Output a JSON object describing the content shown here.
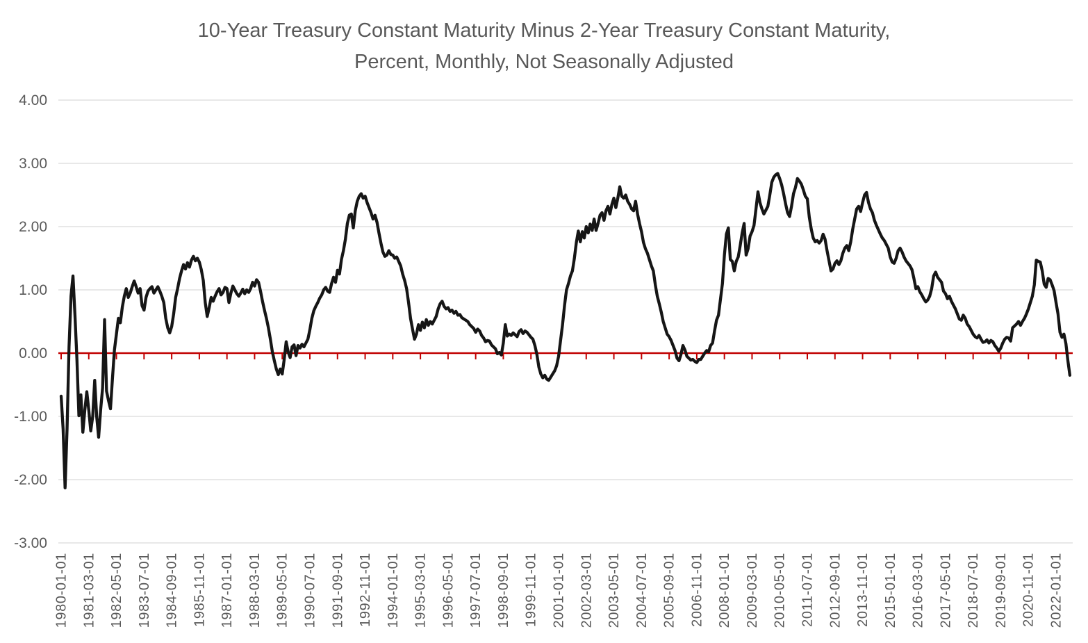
{
  "title": {
    "line1": "10-Year Treasury Constant Maturity Minus 2-Year Treasury Constant Maturity,",
    "line2": "Percent, Monthly, Not Seasonally Adjusted"
  },
  "chart_data": {
    "type": "line",
    "title": "10-Year Treasury Constant Maturity Minus 2-Year Treasury Constant Maturity, Percent, Monthly, Not Seasonally Adjusted",
    "frequency": "monthly",
    "x_start": "1980-01-01",
    "x_end": "2022-08-01",
    "x_tick_interval_months": 14,
    "x_tick_labels": [
      "1980-01-01",
      "1981-03-01",
      "1982-05-01",
      "1983-07-01",
      "1984-09-01",
      "1985-11-01",
      "1987-01-01",
      "1988-03-01",
      "1989-05-01",
      "1990-07-01",
      "1991-09-01",
      "1992-11-01",
      "1994-01-01",
      "1995-03-01",
      "1996-05-01",
      "1997-07-01",
      "1998-09-01",
      "1999-11-01",
      "2001-01-01",
      "2002-03-01",
      "2003-05-01",
      "2004-07-01",
      "2005-09-01",
      "2006-11-01",
      "2008-01-01",
      "2009-03-01",
      "2010-05-01",
      "2011-07-01",
      "2012-09-01",
      "2013-11-01",
      "2015-01-01",
      "2016-03-01",
      "2017-05-01",
      "2018-07-01",
      "2019-09-01",
      "2020-11-01",
      "2022-01-01"
    ],
    "y_tick_labels": [
      "4.00",
      "3.00",
      "2.00",
      "1.00",
      "0.00",
      "-1.00",
      "-2.00",
      "-3.00"
    ],
    "ylim": [
      -3.0,
      4.0
    ],
    "grid": "horizontal",
    "legend": "none",
    "zero_line": true,
    "colors": {
      "line": "#161616",
      "zero_line": "#C00000",
      "gridline": "#D9D9D9",
      "axis_text": "#595959",
      "title_text": "#595959",
      "background": "#FFFFFF"
    },
    "series": [
      {
        "name": "10-Year minus 2-Year Treasury spread (percent)",
        "values": [
          -0.68,
          -1.2,
          -2.13,
          -1.2,
          0.1,
          0.9,
          1.22,
          0.6,
          -0.1,
          -0.99,
          -0.66,
          -1.25,
          -0.9,
          -0.61,
          -0.9,
          -1.23,
          -1.0,
          -0.43,
          -1.0,
          -1.33,
          -0.9,
          -0.55,
          0.53,
          -0.6,
          -0.75,
          -0.88,
          -0.4,
          0.05,
          0.3,
          0.55,
          0.48,
          0.73,
          0.9,
          1.02,
          0.88,
          0.95,
          1.05,
          1.14,
          1.05,
          0.95,
          1.02,
          0.75,
          0.68,
          0.88,
          0.98,
          1.02,
          1.05,
          0.95,
          1.0,
          1.05,
          0.98,
          0.9,
          0.8,
          0.55,
          0.4,
          0.32,
          0.42,
          0.62,
          0.88,
          1.02,
          1.18,
          1.3,
          1.4,
          1.33,
          1.43,
          1.36,
          1.47,
          1.53,
          1.46,
          1.5,
          1.44,
          1.32,
          1.15,
          0.8,
          0.58,
          0.72,
          0.88,
          0.82,
          0.9,
          0.97,
          1.02,
          0.92,
          0.96,
          1.04,
          1.02,
          0.8,
          0.95,
          1.06,
          1.0,
          0.94,
          0.9,
          0.95,
          1.01,
          0.94,
          1.0,
          0.96,
          1.02,
          1.12,
          1.06,
          1.16,
          1.12,
          0.98,
          0.82,
          0.68,
          0.55,
          0.4,
          0.22,
          0.02,
          -0.12,
          -0.25,
          -0.34,
          -0.25,
          -0.33,
          -0.1,
          0.18,
          0.02,
          -0.07,
          0.1,
          0.13,
          -0.04,
          0.12,
          0.08,
          0.14,
          0.1,
          0.16,
          0.22,
          0.37,
          0.55,
          0.67,
          0.74,
          0.8,
          0.87,
          0.92,
          1.0,
          1.04,
          0.98,
          0.96,
          1.1,
          1.2,
          1.12,
          1.31,
          1.25,
          1.48,
          1.62,
          1.8,
          2.05,
          2.18,
          2.2,
          1.98,
          2.25,
          2.4,
          2.48,
          2.52,
          2.45,
          2.48,
          2.38,
          2.3,
          2.22,
          2.12,
          2.18,
          2.07,
          1.9,
          1.74,
          1.6,
          1.53,
          1.55,
          1.62,
          1.56,
          1.55,
          1.5,
          1.52,
          1.45,
          1.38,
          1.25,
          1.15,
          1.02,
          0.8,
          0.55,
          0.38,
          0.22,
          0.3,
          0.45,
          0.36,
          0.49,
          0.4,
          0.53,
          0.44,
          0.5,
          0.46,
          0.52,
          0.58,
          0.7,
          0.78,
          0.82,
          0.74,
          0.7,
          0.72,
          0.66,
          0.68,
          0.63,
          0.66,
          0.6,
          0.61,
          0.56,
          0.54,
          0.52,
          0.5,
          0.45,
          0.42,
          0.39,
          0.33,
          0.38,
          0.35,
          0.28,
          0.24,
          0.18,
          0.2,
          0.19,
          0.13,
          0.1,
          0.07,
          -0.01,
          0.01,
          -0.03,
          0.16,
          0.45,
          0.27,
          0.3,
          0.28,
          0.32,
          0.29,
          0.26,
          0.34,
          0.37,
          0.31,
          0.35,
          0.33,
          0.29,
          0.25,
          0.22,
          0.12,
          -0.02,
          -0.22,
          -0.33,
          -0.39,
          -0.35,
          -0.41,
          -0.43,
          -0.38,
          -0.33,
          -0.28,
          -0.2,
          -0.05,
          0.2,
          0.45,
          0.75,
          1.0,
          1.1,
          1.22,
          1.3,
          1.5,
          1.75,
          1.93,
          1.76,
          1.92,
          1.82,
          2.0,
          1.9,
          2.04,
          1.94,
          2.12,
          1.94,
          2.05,
          2.18,
          2.22,
          2.1,
          2.25,
          2.32,
          2.2,
          2.35,
          2.45,
          2.3,
          2.45,
          2.63,
          2.48,
          2.45,
          2.5,
          2.4,
          2.35,
          2.28,
          2.25,
          2.4,
          2.2,
          2.05,
          1.92,
          1.75,
          1.65,
          1.58,
          1.48,
          1.38,
          1.3,
          1.08,
          0.9,
          0.78,
          0.65,
          0.5,
          0.4,
          0.3,
          0.26,
          0.2,
          0.12,
          0.04,
          -0.08,
          -0.12,
          -0.02,
          0.12,
          0.05,
          -0.05,
          -0.08,
          -0.11,
          -0.1,
          -0.13,
          -0.15,
          -0.1,
          -0.1,
          -0.05,
          0.0,
          0.04,
          0.02,
          0.12,
          0.16,
          0.35,
          0.52,
          0.6,
          0.85,
          1.1,
          1.55,
          1.88,
          1.98,
          1.48,
          1.45,
          1.3,
          1.45,
          1.52,
          1.7,
          1.9,
          2.05,
          1.55,
          1.65,
          1.85,
          1.92,
          2.02,
          2.28,
          2.55,
          2.38,
          2.28,
          2.2,
          2.26,
          2.32,
          2.5,
          2.7,
          2.78,
          2.82,
          2.84,
          2.76,
          2.66,
          2.52,
          2.36,
          2.22,
          2.16,
          2.32,
          2.52,
          2.62,
          2.76,
          2.72,
          2.67,
          2.58,
          2.48,
          2.44,
          2.15,
          1.96,
          1.82,
          1.76,
          1.78,
          1.74,
          1.78,
          1.88,
          1.8,
          1.62,
          1.46,
          1.3,
          1.33,
          1.42,
          1.46,
          1.4,
          1.46,
          1.58,
          1.66,
          1.7,
          1.62,
          1.76,
          1.96,
          2.12,
          2.28,
          2.32,
          2.24,
          2.38,
          2.5,
          2.54,
          2.38,
          2.28,
          2.22,
          2.1,
          2.02,
          1.95,
          1.88,
          1.82,
          1.78,
          1.72,
          1.66,
          1.52,
          1.44,
          1.42,
          1.5,
          1.62,
          1.66,
          1.6,
          1.52,
          1.46,
          1.42,
          1.38,
          1.32,
          1.18,
          1.02,
          1.05,
          0.97,
          0.92,
          0.86,
          0.81,
          0.84,
          0.9,
          1.02,
          1.22,
          1.28,
          1.2,
          1.16,
          1.12,
          0.98,
          0.94,
          0.86,
          0.9,
          0.82,
          0.76,
          0.7,
          0.62,
          0.54,
          0.52,
          0.6,
          0.55,
          0.46,
          0.42,
          0.36,
          0.3,
          0.26,
          0.24,
          0.28,
          0.22,
          0.17,
          0.18,
          0.21,
          0.16,
          0.2,
          0.18,
          0.12,
          0.08,
          0.03,
          0.08,
          0.16,
          0.22,
          0.25,
          0.24,
          0.19,
          0.4,
          0.43,
          0.46,
          0.5,
          0.44,
          0.5,
          0.55,
          0.62,
          0.7,
          0.8,
          0.9,
          1.08,
          1.47,
          1.45,
          1.44,
          1.3,
          1.09,
          1.04,
          1.18,
          1.16,
          1.08,
          0.99,
          0.8,
          0.62,
          0.33,
          0.25,
          0.3,
          0.15,
          -0.12,
          -0.35
        ]
      }
    ]
  }
}
